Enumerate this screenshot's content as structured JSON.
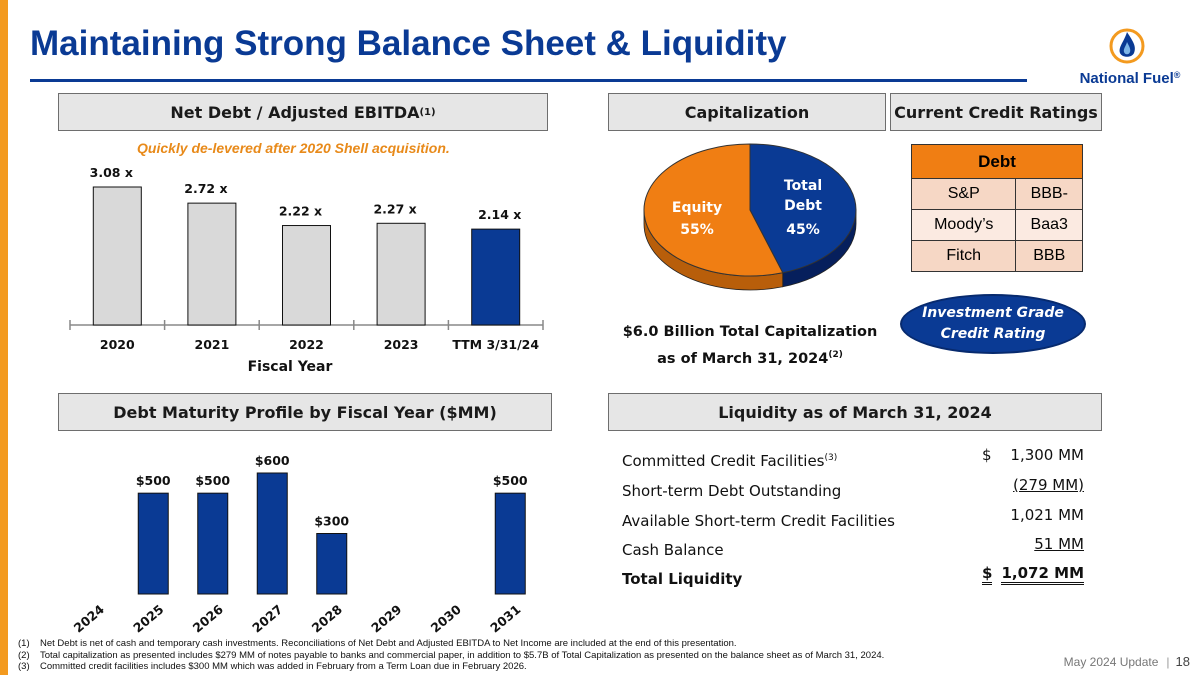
{
  "title": "Maintaining Strong Balance Sheet & Liquidity",
  "logo": {
    "text": "National Fuel",
    "mark": "®"
  },
  "colors": {
    "navy": "#0A3A94",
    "orange": "#F07E13",
    "accent_orange": "#F39A1F",
    "bar_gray": "#D9D9D9"
  },
  "sections": {
    "net_debt": "Net Debt / Adjusted EBITDA",
    "net_debt_sup": "(1)",
    "capitalization": "Capitalization",
    "credit_ratings": "Current Credit Ratings",
    "maturity": "Debt Maturity Profile by Fiscal Year ($MM)",
    "liquidity": "Liquidity as of March 31, 2024"
  },
  "net_debt_note": "Quickly de-levered after 2020 Shell acquisition.",
  "chart_data": [
    {
      "type": "bar",
      "categories": [
        "2020",
        "2021",
        "2022",
        "2023",
        "TTM 3/31/24"
      ],
      "values": [
        3.08,
        2.72,
        2.22,
        2.27,
        2.14
      ],
      "data_labels": [
        "3.08 x",
        "2.72 x",
        "2.22 x",
        "2.27 x",
        "2.14 x"
      ],
      "highlight_index": 4,
      "xlabel": "Fiscal Year",
      "ylim": [
        0,
        3.5
      ]
    },
    {
      "type": "pie",
      "slices": [
        {
          "name": "Total Debt",
          "value": 45,
          "label": "45%",
          "name_lines": [
            "Total",
            "Debt"
          ]
        },
        {
          "name": "Equity",
          "value": 55,
          "label": "55%",
          "name_lines": [
            "Equity"
          ]
        }
      ],
      "caption_line1": "$6.0 Billion Total Capitalization",
      "caption_line2": "as of March 31, 2024",
      "caption_sup": "(2)"
    },
    {
      "type": "bar",
      "categories": [
        "2024",
        "2025",
        "2026",
        "2027",
        "2028",
        "2029",
        "2030",
        "2031"
      ],
      "values": [
        0,
        500,
        500,
        600,
        300,
        0,
        0,
        500
      ],
      "data_labels": [
        "",
        "$500",
        "$500",
        "$600",
        "$300",
        "",
        "",
        "$500"
      ],
      "ylim": [
        0,
        700
      ]
    }
  ],
  "credit_table": {
    "header": "Debt",
    "rows": [
      {
        "agency": "S&P",
        "rating": "BBB-"
      },
      {
        "agency": "Moody’s",
        "rating": "Baa3"
      },
      {
        "agency": "Fitch",
        "rating": "BBB"
      }
    ]
  },
  "investment_grade": {
    "line1": "Investment Grade",
    "line2": "Credit Rating"
  },
  "liquidity": {
    "rows": [
      {
        "label": "Committed Credit Facilities",
        "sup": "(3)",
        "dollar": "$",
        "value": "1,300 MM"
      },
      {
        "label": "Short-term Debt Outstanding",
        "sup": "",
        "dollar": "",
        "value": "(279 MM)"
      },
      {
        "label": "Available Short-term Credit Facilities",
        "sup": "",
        "dollar": "",
        "value": "1,021 MM"
      },
      {
        "label": "Cash Balance",
        "sup": "",
        "dollar": "",
        "value": "51 MM"
      },
      {
        "label": "Total Liquidity",
        "sup": "",
        "dollar": "$",
        "value": "1,072 MM"
      }
    ]
  },
  "footnotes": [
    {
      "num": "(1)",
      "text": "Net Debt is net of cash and temporary cash investments.  Reconciliations of Net Debt and Adjusted EBITDA to Net Income are included at the end of this presentation."
    },
    {
      "num": "(2)",
      "text": "Total capitalization as presented includes $279 MM of notes payable to banks and commercial paper, in addition to $5.7B of Total Capitalization as presented on the balance sheet as of March 31, 2024."
    },
    {
      "num": "(3)",
      "text": "Committed credit facilities includes $300 MM which was added in February from a Term Loan due in February 2026."
    }
  ],
  "footer": {
    "label": "May 2024 Update",
    "page": "18"
  }
}
